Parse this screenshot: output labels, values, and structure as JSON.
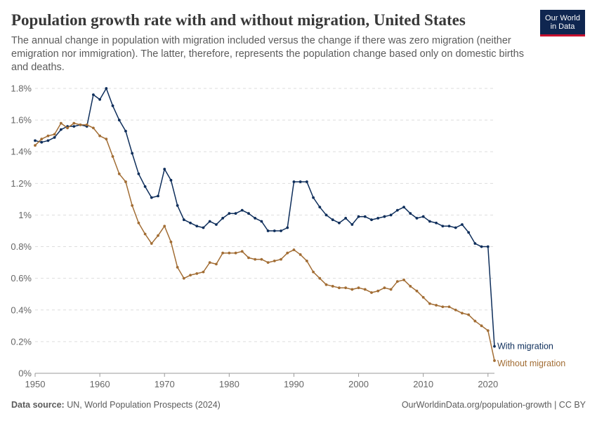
{
  "header": {
    "title": "Population growth rate with and without migration, United States",
    "subtitle": "The annual change in population with migration included versus the change if there was zero migration (neither emigration nor immigration). The latter, therefore, represents the population change based only on domestic births and deaths.",
    "logo_line1": "Our World",
    "logo_line2": "in Data",
    "logo_bg": "#0f2650",
    "logo_accent": "#c8102e"
  },
  "footer": {
    "source_label": "Data source:",
    "source_text": "UN, World Population Prospects (2024)",
    "link_text": "OurWorldinData.org/population-growth | CC BY"
  },
  "chart_data": {
    "type": "line",
    "title": "",
    "xlabel": "",
    "ylabel": "",
    "xlim": [
      1950,
      2021
    ],
    "ylim": [
      0,
      1.8
    ],
    "x_ticks": [
      1950,
      1960,
      1970,
      1980,
      1990,
      2000,
      2010,
      2020
    ],
    "x_tick_labels": [
      "1950",
      "1960",
      "1970",
      "1980",
      "1990",
      "2000",
      "2010",
      "2020"
    ],
    "y_ticks": [
      0,
      0.2,
      0.4,
      0.6,
      0.8,
      1.0,
      1.2,
      1.4,
      1.6,
      1.8
    ],
    "y_tick_labels": [
      "0%",
      "0.2%",
      "0.4%",
      "0.6%",
      "0.8%",
      "1%",
      "1.2%",
      "1.4%",
      "1.6%",
      "1.8%"
    ],
    "grid": "horizontal dashed",
    "legend": "labels at line ends (right)",
    "x": [
      1950,
      1951,
      1952,
      1953,
      1954,
      1955,
      1956,
      1957,
      1958,
      1959,
      1960,
      1961,
      1962,
      1963,
      1964,
      1965,
      1966,
      1967,
      1968,
      1969,
      1970,
      1971,
      1972,
      1973,
      1974,
      1975,
      1976,
      1977,
      1978,
      1979,
      1980,
      1981,
      1982,
      1983,
      1984,
      1985,
      1986,
      1987,
      1988,
      1989,
      1990,
      1991,
      1992,
      1993,
      1994,
      1995,
      1996,
      1997,
      1998,
      1999,
      2000,
      2001,
      2002,
      2003,
      2004,
      2005,
      2006,
      2007,
      2008,
      2009,
      2010,
      2011,
      2012,
      2013,
      2014,
      2015,
      2016,
      2017,
      2018,
      2019,
      2020,
      2021
    ],
    "series": [
      {
        "name": "With migration",
        "color": "#0e2e5b",
        "values": [
          1.47,
          1.46,
          1.47,
          1.49,
          1.54,
          1.56,
          1.56,
          1.57,
          1.56,
          1.76,
          1.73,
          1.8,
          1.69,
          1.6,
          1.53,
          1.39,
          1.26,
          1.18,
          1.11,
          1.12,
          1.29,
          1.22,
          1.06,
          0.97,
          0.95,
          0.93,
          0.92,
          0.96,
          0.94,
          0.98,
          1.01,
          1.01,
          1.03,
          1.01,
          0.98,
          0.96,
          0.9,
          0.9,
          0.9,
          0.92,
          1.21,
          1.21,
          1.21,
          1.11,
          1.05,
          1.0,
          0.97,
          0.95,
          0.98,
          0.94,
          0.99,
          0.99,
          0.97,
          0.98,
          0.99,
          1.0,
          1.03,
          1.05,
          1.01,
          0.98,
          0.99,
          0.96,
          0.95,
          0.93,
          0.93,
          0.92,
          0.94,
          0.89,
          0.82,
          0.8,
          0.8,
          0.17
        ]
      },
      {
        "name": "Without migration",
        "color": "#a26d34",
        "values": [
          1.44,
          1.48,
          1.5,
          1.51,
          1.58,
          1.55,
          1.58,
          1.57,
          1.57,
          1.55,
          1.5,
          1.48,
          1.37,
          1.26,
          1.21,
          1.06,
          0.95,
          0.88,
          0.82,
          0.87,
          0.93,
          0.83,
          0.67,
          0.6,
          0.62,
          0.63,
          0.64,
          0.7,
          0.69,
          0.76,
          0.76,
          0.76,
          0.77,
          0.73,
          0.72,
          0.72,
          0.7,
          0.71,
          0.72,
          0.76,
          0.78,
          0.75,
          0.71,
          0.64,
          0.6,
          0.56,
          0.55,
          0.54,
          0.54,
          0.53,
          0.54,
          0.53,
          0.51,
          0.52,
          0.54,
          0.53,
          0.58,
          0.59,
          0.55,
          0.52,
          0.48,
          0.44,
          0.43,
          0.42,
          0.42,
          0.4,
          0.38,
          0.37,
          0.33,
          0.3,
          0.27,
          0.08
        ]
      }
    ]
  }
}
